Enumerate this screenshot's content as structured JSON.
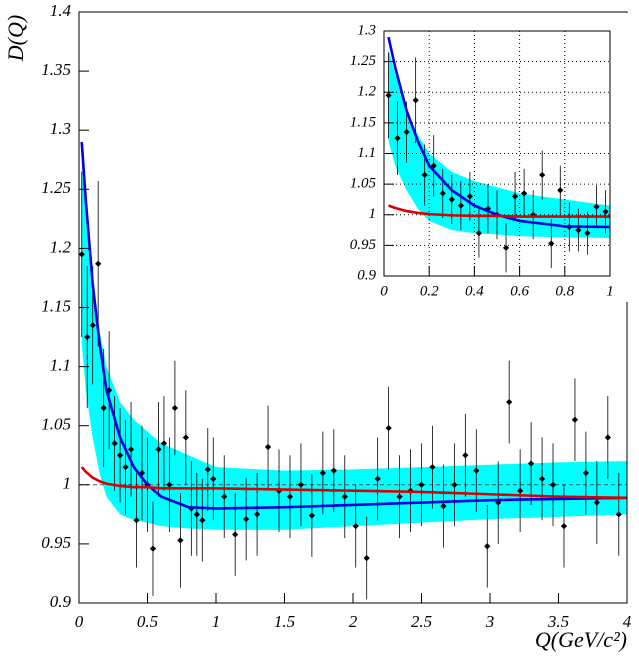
{
  "chart_data": [
    {
      "type": "scatter",
      "ylabel": "D(Q)",
      "xlabel": "Q(GeV/c²)",
      "xlim": [
        0,
        4
      ],
      "ylim": [
        0.9,
        1.4
      ],
      "xticks": [
        0,
        0.5,
        1,
        1.5,
        2,
        2.5,
        3,
        3.5,
        4
      ],
      "yticks": [
        0.9,
        0.95,
        1,
        1.05,
        1.1,
        1.15,
        1.2,
        1.25,
        1.3,
        1.35,
        1.4
      ],
      "grid": false,
      "hline": 1,
      "band": {
        "color": "#00ffff",
        "x": [
          0.02,
          0.05,
          0.1,
          0.15,
          0.2,
          0.3,
          0.4,
          0.5,
          0.6,
          0.8,
          1.0,
          1.5,
          2,
          2.5,
          3,
          3.5,
          4
        ],
        "upper": [
          1.27,
          1.23,
          1.17,
          1.13,
          1.1,
          1.07,
          1.055,
          1.045,
          1.035,
          1.025,
          1.015,
          1.012,
          1.013,
          1.015,
          1.017,
          1.019,
          1.02
        ],
        "lower": [
          1.12,
          1.08,
          1.04,
          1.01,
          0.99,
          0.975,
          0.97,
          0.968,
          0.965,
          0.963,
          0.962,
          0.962,
          0.965,
          0.968,
          0.971,
          0.973,
          0.975
        ]
      },
      "curves": [
        {
          "color": "#0000dd",
          "x": [
            0.02,
            0.05,
            0.1,
            0.15,
            0.2,
            0.3,
            0.4,
            0.5,
            0.6,
            0.8,
            1.0,
            1.5,
            2,
            2.5,
            3,
            3.5,
            4
          ],
          "values": [
            1.29,
            1.24,
            1.17,
            1.12,
            1.08,
            1.04,
            1.015,
            1.0,
            0.99,
            0.981,
            0.98,
            0.981,
            0.983,
            0.985,
            0.987,
            0.988,
            0.989
          ]
        },
        {
          "color": "#dd0000",
          "x": [
            0.02,
            0.05,
            0.1,
            0.15,
            0.2,
            0.3,
            0.4,
            0.5,
            0.6,
            0.8,
            1.0,
            1.5,
            2,
            2.5,
            3,
            3.5,
            4
          ],
          "values": [
            1.015,
            1.011,
            1.006,
            1.003,
            1.001,
            0.999,
            0.998,
            0.998,
            0.997,
            0.997,
            0.997,
            0.996,
            0.995,
            0.994,
            0.992,
            0.99,
            0.989
          ]
        }
      ],
      "points": {
        "color": "#000000",
        "x": [
          0.02,
          0.06,
          0.1,
          0.14,
          0.18,
          0.22,
          0.26,
          0.3,
          0.34,
          0.38,
          0.42,
          0.46,
          0.5,
          0.54,
          0.58,
          0.62,
          0.66,
          0.7,
          0.74,
          0.78,
          0.82,
          0.86,
          0.9,
          0.94,
          0.98,
          1.06,
          1.14,
          1.22,
          1.3,
          1.38,
          1.46,
          1.54,
          1.62,
          1.7,
          1.78,
          1.86,
          1.94,
          2.02,
          2.1,
          2.18,
          2.26,
          2.34,
          2.42,
          2.5,
          2.58,
          2.66,
          2.74,
          2.82,
          2.9,
          2.98,
          3.06,
          3.14,
          3.22,
          3.3,
          3.38,
          3.46,
          3.54,
          3.62,
          3.7,
          3.78,
          3.86,
          3.94
        ],
        "values": [
          1.195,
          1.125,
          1.135,
          1.187,
          1.065,
          1.08,
          1.035,
          1.025,
          1.015,
          1.03,
          0.97,
          1.01,
          1.0,
          0.946,
          1.03,
          1.035,
          1.0,
          1.065,
          0.953,
          1.04,
          0.98,
          0.975,
          0.97,
          1.013,
          1.005,
          0.99,
          0.958,
          0.971,
          0.975,
          1.032,
          0.995,
          0.99,
          1.0,
          0.974,
          1.01,
          1.012,
          0.99,
          0.965,
          0.938,
          1.005,
          1.048,
          0.99,
          0.995,
          1.0,
          1.015,
          0.982,
          1.0,
          1.025,
          1.012,
          0.948,
          0.985,
          1.07,
          0.995,
          1.018,
          1.005,
          1.0,
          0.965,
          1.055,
          1.01,
          0.985,
          1.04,
          0.975
        ],
        "errors": [
          0.07,
          0.06,
          0.05,
          0.07,
          0.05,
          0.05,
          0.04,
          0.04,
          0.04,
          0.04,
          0.04,
          0.04,
          0.04,
          0.04,
          0.04,
          0.04,
          0.04,
          0.04,
          0.04,
          0.04,
          0.04,
          0.035,
          0.035,
          0.035,
          0.035,
          0.035,
          0.035,
          0.035,
          0.035,
          0.035,
          0.035,
          0.035,
          0.035,
          0.035,
          0.035,
          0.035,
          0.035,
          0.035,
          0.035,
          0.035,
          0.035,
          0.035,
          0.035,
          0.035,
          0.035,
          0.035,
          0.035,
          0.035,
          0.035,
          0.035,
          0.035,
          0.035,
          0.035,
          0.035,
          0.035,
          0.035,
          0.035,
          0.035,
          0.035,
          0.035,
          0.035,
          0.035
        ]
      }
    },
    {
      "type": "scatter",
      "xlim": [
        0,
        1
      ],
      "ylim": [
        0.9,
        1.3
      ],
      "xticks": [
        0,
        0.2,
        0.4,
        0.6,
        0.8,
        1
      ],
      "yticks": [
        0.9,
        0.95,
        1,
        1.05,
        1.1,
        1.15,
        1.2,
        1.25,
        1.3
      ],
      "grid": true,
      "band": {
        "color": "#00ffff",
        "x": [
          0.02,
          0.05,
          0.1,
          0.15,
          0.2,
          0.3,
          0.4,
          0.5,
          0.6,
          0.8,
          1.0
        ],
        "upper": [
          1.27,
          1.23,
          1.17,
          1.13,
          1.1,
          1.07,
          1.055,
          1.045,
          1.035,
          1.025,
          1.015
        ],
        "lower": [
          1.12,
          1.08,
          1.04,
          1.01,
          0.99,
          0.975,
          0.97,
          0.968,
          0.965,
          0.963,
          0.962
        ]
      },
      "curves": [
        {
          "color": "#0000dd",
          "x": [
            0.02,
            0.05,
            0.1,
            0.15,
            0.2,
            0.3,
            0.4,
            0.5,
            0.6,
            0.8,
            1.0
          ],
          "values": [
            1.29,
            1.24,
            1.17,
            1.12,
            1.08,
            1.04,
            1.015,
            1.0,
            0.99,
            0.981,
            0.98
          ]
        },
        {
          "color": "#dd0000",
          "x": [
            0.02,
            0.05,
            0.1,
            0.15,
            0.2,
            0.3,
            0.4,
            0.5,
            0.6,
            0.8,
            1.0
          ],
          "values": [
            1.015,
            1.011,
            1.006,
            1.003,
            1.001,
            0.999,
            0.998,
            0.998,
            0.997,
            0.997,
            0.997
          ]
        }
      ],
      "points": {
        "color": "#000000",
        "x": [
          0.02,
          0.06,
          0.1,
          0.14,
          0.18,
          0.22,
          0.26,
          0.3,
          0.34,
          0.38,
          0.42,
          0.46,
          0.5,
          0.54,
          0.58,
          0.62,
          0.66,
          0.7,
          0.74,
          0.78,
          0.82,
          0.86,
          0.9,
          0.94,
          0.98
        ],
        "values": [
          1.195,
          1.125,
          1.135,
          1.187,
          1.065,
          1.08,
          1.035,
          1.025,
          1.015,
          1.03,
          0.97,
          1.01,
          1.0,
          0.946,
          1.03,
          1.035,
          1.0,
          1.065,
          0.953,
          1.04,
          0.98,
          0.975,
          0.97,
          1.013,
          1.005
        ],
        "errors": [
          0.07,
          0.06,
          0.05,
          0.07,
          0.05,
          0.05,
          0.04,
          0.04,
          0.04,
          0.04,
          0.04,
          0.04,
          0.04,
          0.04,
          0.04,
          0.04,
          0.04,
          0.04,
          0.04,
          0.04,
          0.04,
          0.035,
          0.035,
          0.035,
          0.035
        ]
      }
    }
  ]
}
